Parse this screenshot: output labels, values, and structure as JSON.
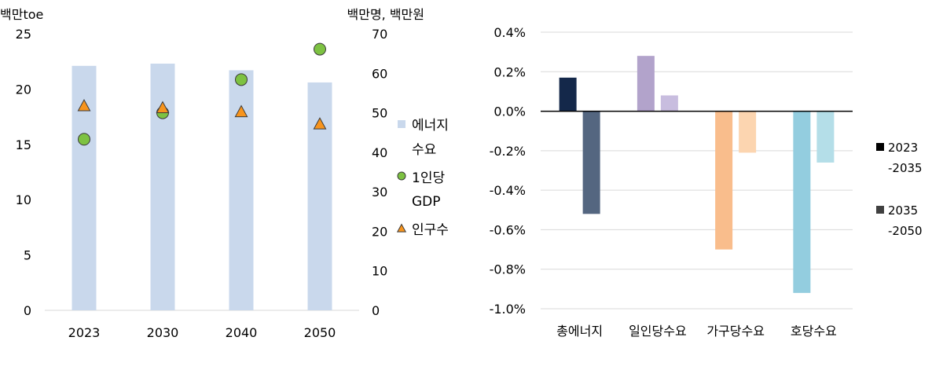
{
  "chart_data": [
    {
      "type": "bar",
      "title": "",
      "ylabel_left": "백만toe",
      "ylabel_right": "백만명, 백만원",
      "categories": [
        "2023",
        "2030",
        "2040",
        "2050"
      ],
      "ylim_left": [
        0,
        25
      ],
      "ylim_right": [
        0,
        70
      ],
      "yticks_left": [
        "0",
        "5",
        "10",
        "15",
        "20",
        "25"
      ],
      "yticks_right": [
        "0",
        "10",
        "20",
        "30",
        "40",
        "50",
        "60",
        "70"
      ],
      "grid": false,
      "legend_position": "right",
      "series": [
        {
          "name": "에너지 수요",
          "legend_lines": [
            "에너지",
            "수요"
          ],
          "type": "bar",
          "axis": "left",
          "color": "#c9d8ec",
          "values": [
            22.1,
            22.3,
            21.7,
            20.6
          ]
        },
        {
          "name": "1인당 GDP",
          "legend_lines": [
            "1인당",
            "GDP"
          ],
          "type": "scatter",
          "marker": "circle",
          "axis": "right",
          "color": "#7dc242",
          "values": [
            43.3,
            50.0,
            58.4,
            66.1
          ]
        },
        {
          "name": "인구수",
          "legend_lines": [
            "인구수"
          ],
          "type": "scatter",
          "marker": "triangle",
          "axis": "right",
          "color": "#f7941d",
          "values": [
            51.7,
            51.2,
            50.2,
            47.1
          ]
        }
      ]
    },
    {
      "type": "bar",
      "title": "",
      "categories": [
        "총에너지",
        "일인당수요",
        "가구당수요",
        "호당수요"
      ],
      "ylim": [
        -1.0,
        0.4
      ],
      "yticks": [
        "-1.0%",
        "-0.8%",
        "-0.6%",
        "-0.4%",
        "-0.2%",
        "0.0%",
        "0.2%",
        "0.4%"
      ],
      "grid": true,
      "legend_position": "right",
      "series": [
        {
          "name": "2023 -2035",
          "legend_lines": [
            "2023",
            "-2035"
          ],
          "values": [
            0.17,
            0.28,
            -0.7,
            -0.92
          ],
          "colors": [
            "#14284a",
            "#b2a3cb",
            "#f9bd8c",
            "#93cddf"
          ],
          "legend_color": "#000000"
        },
        {
          "name": "2035 -2050",
          "legend_lines": [
            "2035",
            "-2050"
          ],
          "values": [
            -0.52,
            0.08,
            -0.21,
            -0.26
          ],
          "colors": [
            "#546680",
            "#c8bddf",
            "#fcd5b0",
            "#b4dee8"
          ],
          "legend_color": "#404040"
        }
      ]
    }
  ]
}
